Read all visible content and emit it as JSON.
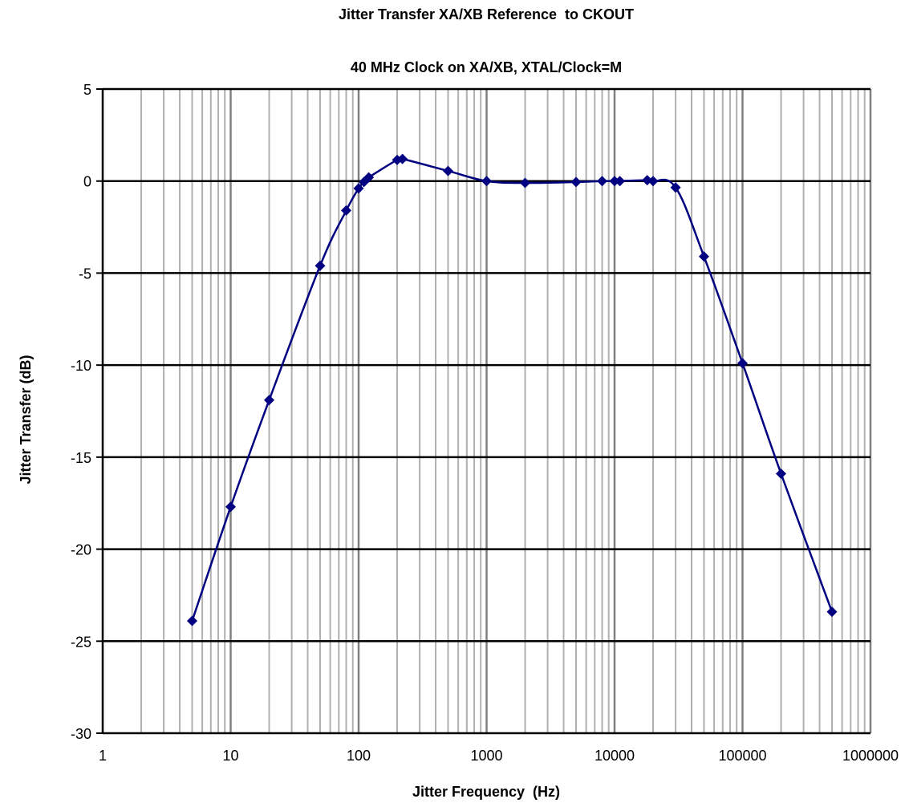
{
  "chart_data": {
    "type": "line",
    "title": "Jitter Transfer XA/XB Reference  to CKOUT",
    "subtitle": "40 MHz Clock on XA/XB, XTAL/Clock=M",
    "xlabel": "Jitter Frequency  (Hz)",
    "ylabel": "Jitter Transfer (dB)",
    "x_scale": "log",
    "xlim": [
      1,
      1000000
    ],
    "ylim": [
      -30,
      5
    ],
    "x_tick_labels": [
      "1",
      "10",
      "100",
      "1000",
      "10000",
      "100000",
      "1000000"
    ],
    "y_tick_labels": [
      "5",
      "0",
      "-5",
      "-10",
      "-15",
      "-20",
      "-25",
      "-30"
    ],
    "grid": "major and minor vertical, major horizontal",
    "colors": {
      "line": "#000080",
      "marker": "#000080",
      "major_grid": "#000000",
      "minor_grid": "#b0b0b0"
    },
    "series": [
      {
        "x": [
          5,
          10,
          20,
          50,
          80,
          100,
          110,
          120,
          200,
          220,
          500,
          1000,
          2000,
          5000,
          8000,
          10000,
          11000,
          18000,
          20000,
          30000,
          50000,
          100000,
          200000,
          500000
        ],
        "y": [
          -23.9,
          -17.7,
          -11.9,
          -4.6,
          -1.6,
          -0.4,
          -0.05,
          0.2,
          1.15,
          1.2,
          0.55,
          0.0,
          -0.1,
          -0.05,
          0.0,
          0.0,
          0.0,
          0.05,
          0.0,
          -0.35,
          -4.1,
          -9.9,
          -15.9,
          -23.4
        ]
      }
    ]
  }
}
